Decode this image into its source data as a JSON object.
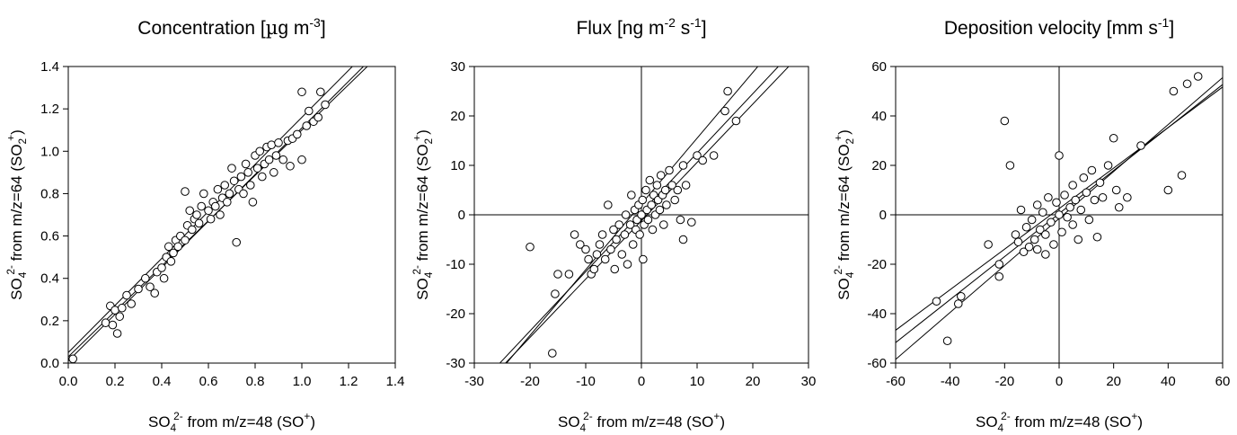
{
  "chart_data": [
    {
      "type": "scatter",
      "title": {
        "pre": "Concentration [",
        "mu": "µ",
        "post": "g m",
        "sup": "-3",
        "end": "]"
      },
      "xlabel": {
        "a": "SO",
        "sub": "4",
        "sup": "2-",
        "b": " from m/z=48 (SO",
        "sup2": "+",
        "c": ")"
      },
      "ylabel": {
        "a": "SO",
        "sub": "4",
        "sup": "2-",
        "b": " from m/z=64 (SO",
        "sub2": "2",
        "sup2": "+",
        "c": ")"
      },
      "xlim": [
        0.0,
        1.4
      ],
      "ylim": [
        0.0,
        1.4
      ],
      "xticks": [
        "0.0",
        "0.2",
        "0.4",
        "0.6",
        "0.8",
        "1.0",
        "1.2",
        "1.4"
      ],
      "yticks": [
        "0.0",
        "0.2",
        "0.4",
        "0.6",
        "0.8",
        "1.0",
        "1.2",
        "1.4"
      ],
      "zero_lines": false,
      "fit": {
        "slope": 1.07,
        "intercept": 0.03,
        "band_upper": [
          0.05,
          1.11
        ],
        "band_lower": [
          0.01,
          1.1
        ]
      },
      "points": [
        [
          0.02,
          0.02
        ],
        [
          0.16,
          0.19
        ],
        [
          0.18,
          0.27
        ],
        [
          0.19,
          0.18
        ],
        [
          0.2,
          0.25
        ],
        [
          0.21,
          0.14
        ],
        [
          0.22,
          0.22
        ],
        [
          0.23,
          0.26
        ],
        [
          0.25,
          0.32
        ],
        [
          0.27,
          0.28
        ],
        [
          0.3,
          0.35
        ],
        [
          0.33,
          0.4
        ],
        [
          0.35,
          0.36
        ],
        [
          0.37,
          0.33
        ],
        [
          0.38,
          0.43
        ],
        [
          0.4,
          0.45
        ],
        [
          0.41,
          0.4
        ],
        [
          0.42,
          0.5
        ],
        [
          0.43,
          0.55
        ],
        [
          0.44,
          0.48
        ],
        [
          0.45,
          0.52
        ],
        [
          0.46,
          0.58
        ],
        [
          0.47,
          0.55
        ],
        [
          0.48,
          0.6
        ],
        [
          0.5,
          0.58
        ],
        [
          0.5,
          0.81
        ],
        [
          0.51,
          0.65
        ],
        [
          0.52,
          0.72
        ],
        [
          0.53,
          0.63
        ],
        [
          0.54,
          0.68
        ],
        [
          0.55,
          0.7
        ],
        [
          0.56,
          0.66
        ],
        [
          0.57,
          0.74
        ],
        [
          0.58,
          0.8
        ],
        [
          0.6,
          0.72
        ],
        [
          0.61,
          0.68
        ],
        [
          0.62,
          0.76
        ],
        [
          0.63,
          0.74
        ],
        [
          0.64,
          0.82
        ],
        [
          0.65,
          0.7
        ],
        [
          0.66,
          0.78
        ],
        [
          0.67,
          0.84
        ],
        [
          0.68,
          0.76
        ],
        [
          0.69,
          0.8
        ],
        [
          0.7,
          0.92
        ],
        [
          0.71,
          0.86
        ],
        [
          0.72,
          0.57
        ],
        [
          0.73,
          0.82
        ],
        [
          0.74,
          0.88
        ],
        [
          0.75,
          0.8
        ],
        [
          0.76,
          0.94
        ],
        [
          0.77,
          0.9
        ],
        [
          0.78,
          0.84
        ],
        [
          0.79,
          0.76
        ],
        [
          0.8,
          0.98
        ],
        [
          0.81,
          0.92
        ],
        [
          0.82,
          1.0
        ],
        [
          0.83,
          0.88
        ],
        [
          0.84,
          0.94
        ],
        [
          0.85,
          1.02
        ],
        [
          0.86,
          0.96
        ],
        [
          0.87,
          1.03
        ],
        [
          0.88,
          0.9
        ],
        [
          0.89,
          0.98
        ],
        [
          0.9,
          1.04
        ],
        [
          0.92,
          0.96
        ],
        [
          0.94,
          1.05
        ],
        [
          0.95,
          0.93
        ],
        [
          0.96,
          1.06
        ],
        [
          0.98,
          1.08
        ],
        [
          1.0,
          0.96
        ],
        [
          1.0,
          1.28
        ],
        [
          1.02,
          1.12
        ],
        [
          1.03,
          1.19
        ],
        [
          1.05,
          1.14
        ],
        [
          1.07,
          1.16
        ],
        [
          1.08,
          1.28
        ],
        [
          1.1,
          1.22
        ]
      ]
    },
    {
      "type": "scatter",
      "title": {
        "pre": "Flux [ng m",
        "sup": "-2",
        "mid": " s",
        "sup2": "-1",
        "end": "]"
      },
      "xlabel": {
        "a": "SO",
        "sub": "4",
        "sup": "2-",
        "b": " from m/z=48 (SO",
        "sup2": "+",
        "c": ")"
      },
      "ylabel": {
        "a": "SO",
        "sub": "4",
        "sup": "2-",
        "b": " from m/z=64 (SO",
        "sub2": "2",
        "sup2": "+",
        "c": ")"
      },
      "xlim": [
        -30,
        30
      ],
      "ylim": [
        -30,
        30
      ],
      "xticks": [
        "-30",
        "-20",
        "-10",
        "0",
        "10",
        "20",
        "30"
      ],
      "yticks": [
        "-30",
        "-20",
        "-10",
        "0",
        "10",
        "20",
        "30"
      ],
      "zero_lines": true,
      "fit": {
        "slope": 1.2,
        "intercept": 0.5,
        "band_upper": [
          2.2,
          1.33
        ],
        "band_lower": [
          -1.2,
          1.18
        ]
      },
      "points": [
        [
          -20,
          -6.5
        ],
        [
          -16,
          -28
        ],
        [
          -15.5,
          -16
        ],
        [
          -15,
          -12
        ],
        [
          -13,
          -12
        ],
        [
          -12,
          -4
        ],
        [
          -11,
          -6
        ],
        [
          -10,
          -7
        ],
        [
          -9.5,
          -9
        ],
        [
          -9,
          -12
        ],
        [
          -8.5,
          -11
        ],
        [
          -8,
          -8
        ],
        [
          -7.5,
          -6
        ],
        [
          -7,
          -4
        ],
        [
          -6.5,
          -9
        ],
        [
          -6,
          2
        ],
        [
          -5.5,
          -7
        ],
        [
          -5,
          -3
        ],
        [
          -4.8,
          -11
        ],
        [
          -4.5,
          -5
        ],
        [
          -4,
          -2
        ],
        [
          -3.5,
          -8
        ],
        [
          -3,
          -4
        ],
        [
          -2.8,
          0
        ],
        [
          -2.5,
          -10
        ],
        [
          -2,
          -2
        ],
        [
          -1.8,
          4
        ],
        [
          -1.5,
          -6
        ],
        [
          -1.2,
          1
        ],
        [
          -1,
          -3
        ],
        [
          -0.8,
          -1
        ],
        [
          -0.5,
          2
        ],
        [
          -0.3,
          -4
        ],
        [
          0,
          0
        ],
        [
          0.2,
          3
        ],
        [
          0.3,
          -9
        ],
        [
          0.5,
          -2
        ],
        [
          0.8,
          5
        ],
        [
          1,
          1
        ],
        [
          1.2,
          -1
        ],
        [
          1.5,
          7
        ],
        [
          1.8,
          2
        ],
        [
          2,
          -3
        ],
        [
          2.2,
          4
        ],
        [
          2.5,
          0
        ],
        [
          2.8,
          6
        ],
        [
          3,
          3
        ],
        [
          3.3,
          1
        ],
        [
          3.5,
          8
        ],
        [
          3.8,
          4
        ],
        [
          4,
          -2
        ],
        [
          4.3,
          5
        ],
        [
          4.5,
          2
        ],
        [
          5,
          9
        ],
        [
          5.5,
          6
        ],
        [
          6,
          3
        ],
        [
          6.5,
          5
        ],
        [
          7,
          -1
        ],
        [
          7.5,
          10
        ],
        [
          7.5,
          -5
        ],
        [
          8,
          6
        ],
        [
          9,
          -1.5
        ],
        [
          10,
          12
        ],
        [
          11,
          11
        ],
        [
          13,
          12
        ],
        [
          15,
          21
        ],
        [
          15.5,
          25
        ],
        [
          17,
          19
        ]
      ]
    },
    {
      "type": "scatter",
      "title": {
        "pre": "Deposition velocity [mm s",
        "sup": "-1",
        "end": "]"
      },
      "xlabel": {
        "a": "SO",
        "sub": "4",
        "sup": "2-",
        "b": " from m/z=48 (SO",
        "sup2": "+",
        "c": ")"
      },
      "ylabel": {
        "a": "SO",
        "sub": "4",
        "sup": "2-",
        "b": " from m/z=64 (SO",
        "sub2": "2",
        "sup2": "+",
        "c": ")"
      },
      "xlim": [
        -60,
        60
      ],
      "ylim": [
        -60,
        60
      ],
      "xticks": [
        "-60",
        "-40",
        "-20",
        "0",
        "20",
        "40",
        "60"
      ],
      "yticks": [
        "-60",
        "-40",
        "-20",
        "0",
        "20",
        "40",
        "60"
      ],
      "zero_lines": true,
      "fit": {
        "slope": 0.87,
        "intercept": 0.5,
        "band_upper": [
          2.5,
          0.82
        ],
        "band_lower": [
          -1.5,
          0.95
        ]
      },
      "points": [
        [
          -45,
          -35
        ],
        [
          -41,
          -51
        ],
        [
          -37,
          -36
        ],
        [
          -36,
          -33
        ],
        [
          -26,
          -12
        ],
        [
          -22,
          -25
        ],
        [
          -22,
          -20
        ],
        [
          -20,
          38
        ],
        [
          -18,
          20
        ],
        [
          -16,
          -8
        ],
        [
          -15,
          -11
        ],
        [
          -14,
          2
        ],
        [
          -13,
          -15
        ],
        [
          -12,
          -5
        ],
        [
          -11,
          -13
        ],
        [
          -10,
          -2
        ],
        [
          -9,
          -10
        ],
        [
          -8,
          4
        ],
        [
          -8,
          -14
        ],
        [
          -7,
          -6
        ],
        [
          -6,
          1
        ],
        [
          -5,
          -16
        ],
        [
          -5,
          -8
        ],
        [
          -4,
          7
        ],
        [
          -3,
          -3
        ],
        [
          -2,
          -12
        ],
        [
          -1,
          5
        ],
        [
          0,
          0
        ],
        [
          0,
          24
        ],
        [
          1,
          -7
        ],
        [
          2,
          8
        ],
        [
          3,
          -1
        ],
        [
          4,
          3
        ],
        [
          5,
          12
        ],
        [
          5,
          -4
        ],
        [
          6,
          6
        ],
        [
          7,
          -10
        ],
        [
          8,
          2
        ],
        [
          9,
          15
        ],
        [
          10,
          9
        ],
        [
          11,
          -2
        ],
        [
          12,
          18
        ],
        [
          13,
          6
        ],
        [
          14,
          -9
        ],
        [
          15,
          13
        ],
        [
          16,
          7
        ],
        [
          18,
          20
        ],
        [
          20,
          31
        ],
        [
          21,
          10
        ],
        [
          22,
          3
        ],
        [
          25,
          7
        ],
        [
          30,
          28
        ],
        [
          40,
          10
        ],
        [
          42,
          50
        ],
        [
          45,
          16
        ],
        [
          47,
          53
        ],
        [
          51,
          56
        ]
      ]
    }
  ]
}
